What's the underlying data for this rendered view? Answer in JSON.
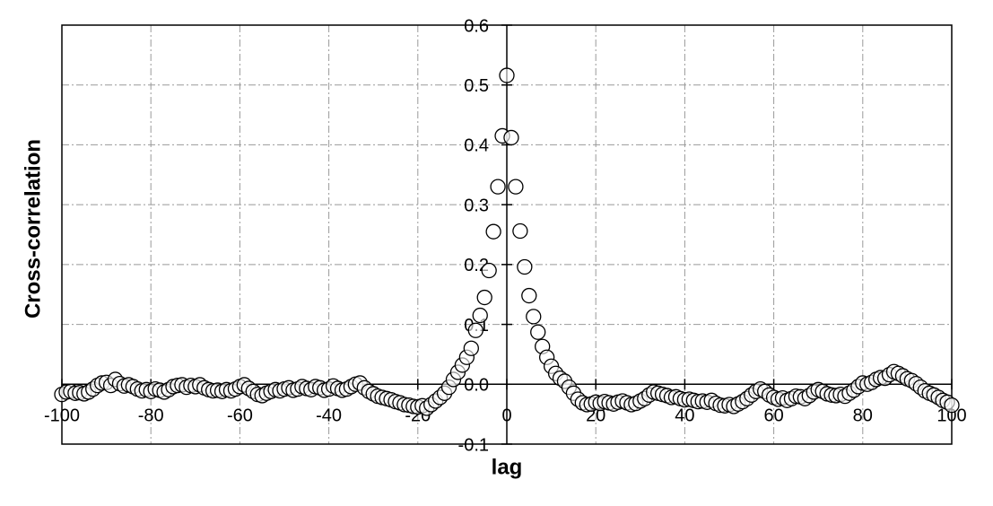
{
  "chart_data": {
    "type": "scatter",
    "x_label": "lag",
    "y_label": "Cross-correlation",
    "xlim": [
      -100,
      100
    ],
    "ylim": [
      -0.1,
      0.6
    ],
    "xticks": [
      -100,
      -80,
      -60,
      -40,
      -20,
      0,
      20,
      40,
      60,
      80,
      100
    ],
    "yticks": [
      -0.1,
      {
        "value": 0,
        "label": "0.0"
      },
      0.1,
      0.2,
      0.3,
      0.4,
      0.5,
      0.6
    ],
    "grid": true,
    "marker_color": "#000000",
    "x": [
      -100,
      -99,
      -98,
      -97,
      -96,
      -95,
      -94,
      -93,
      -92,
      -91,
      -90,
      -89,
      -88,
      -87,
      -86,
      -85,
      -84,
      -83,
      -82,
      -81,
      -80,
      -79,
      -78,
      -77,
      -76,
      -75,
      -74,
      -73,
      -72,
      -71,
      -70,
      -69,
      -68,
      -67,
      -66,
      -65,
      -64,
      -63,
      -62,
      -61,
      -60,
      -59,
      -58,
      -57,
      -56,
      -55,
      -54,
      -53,
      -52,
      -51,
      -50,
      -49,
      -48,
      -47,
      -46,
      -45,
      -44,
      -43,
      -42,
      -41,
      -40,
      -39,
      -38,
      -37,
      -36,
      -35,
      -34,
      -33,
      -32,
      -31,
      -30,
      -29,
      -28,
      -27,
      -26,
      -25,
      -24,
      -23,
      -22,
      -21,
      -20,
      -19,
      -18,
      -17,
      -16,
      -15,
      -14,
      -13,
      -12,
      -11,
      -10,
      -9,
      -8,
      -7,
      -6,
      -5,
      -4,
      -3,
      -2,
      -1,
      0,
      1,
      2,
      3,
      4,
      5,
      6,
      7,
      8,
      9,
      10,
      11,
      12,
      13,
      14,
      15,
      16,
      17,
      18,
      19,
      20,
      21,
      22,
      23,
      24,
      25,
      26,
      27,
      28,
      29,
      30,
      31,
      32,
      33,
      34,
      35,
      36,
      37,
      38,
      39,
      40,
      41,
      42,
      43,
      44,
      45,
      46,
      47,
      48,
      49,
      50,
      51,
      52,
      53,
      54,
      55,
      56,
      57,
      58,
      59,
      60,
      61,
      62,
      63,
      64,
      65,
      66,
      67,
      68,
      69,
      70,
      71,
      72,
      73,
      74,
      75,
      76,
      77,
      78,
      79,
      80,
      81,
      82,
      83,
      84,
      85,
      86,
      87,
      88,
      89,
      90,
      91,
      92,
      93,
      94,
      95,
      96,
      97,
      98,
      99,
      100
    ],
    "values": [
      -0.017,
      -0.013,
      -0.012,
      -0.015,
      -0.014,
      -0.016,
      -0.013,
      -0.008,
      -0.002,
      0.002,
      0.003,
      -0.002,
      0.008,
      0.001,
      -0.003,
      -0.001,
      -0.004,
      -0.008,
      -0.011,
      -0.009,
      -0.012,
      -0.008,
      -0.01,
      -0.013,
      -0.009,
      -0.004,
      -0.002,
      -0.001,
      -0.005,
      -0.002,
      -0.004,
      -0.001,
      -0.006,
      -0.009,
      -0.011,
      -0.01,
      -0.012,
      -0.009,
      -0.011,
      -0.008,
      -0.004,
      -0.001,
      -0.007,
      -0.012,
      -0.017,
      -0.019,
      -0.015,
      -0.012,
      -0.009,
      -0.011,
      -0.008,
      -0.006,
      -0.01,
      -0.008,
      -0.004,
      -0.007,
      -0.009,
      -0.004,
      -0.006,
      -0.01,
      -0.008,
      -0.003,
      -0.007,
      -0.01,
      -0.008,
      -0.004,
      0.0,
      0.002,
      -0.006,
      -0.012,
      -0.016,
      -0.02,
      -0.022,
      -0.024,
      -0.026,
      -0.029,
      -0.031,
      -0.034,
      -0.035,
      -0.037,
      -0.038,
      -0.036,
      -0.04,
      -0.034,
      -0.028,
      -0.022,
      -0.015,
      -0.005,
      0.008,
      0.02,
      0.032,
      0.045,
      0.06,
      0.09,
      0.115,
      0.145,
      0.19,
      0.255,
      0.33,
      0.415,
      0.516,
      0.412,
      0.33,
      0.256,
      0.196,
      0.148,
      0.113,
      0.087,
      0.063,
      0.045,
      0.03,
      0.018,
      0.01,
      0.005,
      -0.005,
      -0.015,
      -0.025,
      -0.031,
      -0.034,
      -0.033,
      -0.03,
      -0.032,
      -0.029,
      -0.031,
      -0.033,
      -0.03,
      -0.028,
      -0.031,
      -0.034,
      -0.032,
      -0.028,
      -0.024,
      -0.018,
      -0.013,
      -0.015,
      -0.017,
      -0.019,
      -0.022,
      -0.021,
      -0.024,
      -0.026,
      -0.025,
      -0.027,
      -0.029,
      -0.028,
      -0.03,
      -0.027,
      -0.032,
      -0.035,
      -0.036,
      -0.034,
      -0.037,
      -0.033,
      -0.029,
      -0.024,
      -0.018,
      -0.012,
      -0.008,
      -0.012,
      -0.018,
      -0.022,
      -0.025,
      -0.023,
      -0.027,
      -0.024,
      -0.02,
      -0.021,
      -0.024,
      -0.019,
      -0.013,
      -0.009,
      -0.012,
      -0.016,
      -0.018,
      -0.019,
      -0.017,
      -0.02,
      -0.015,
      -0.01,
      -0.004,
      0.002,
      0.0,
      0.003,
      0.008,
      0.011,
      0.01,
      0.016,
      0.021,
      0.018,
      0.014,
      0.009,
      0.006,
      0.001,
      -0.005,
      -0.011,
      -0.015,
      -0.018,
      -0.022,
      -0.027,
      -0.03,
      -0.035
    ]
  }
}
